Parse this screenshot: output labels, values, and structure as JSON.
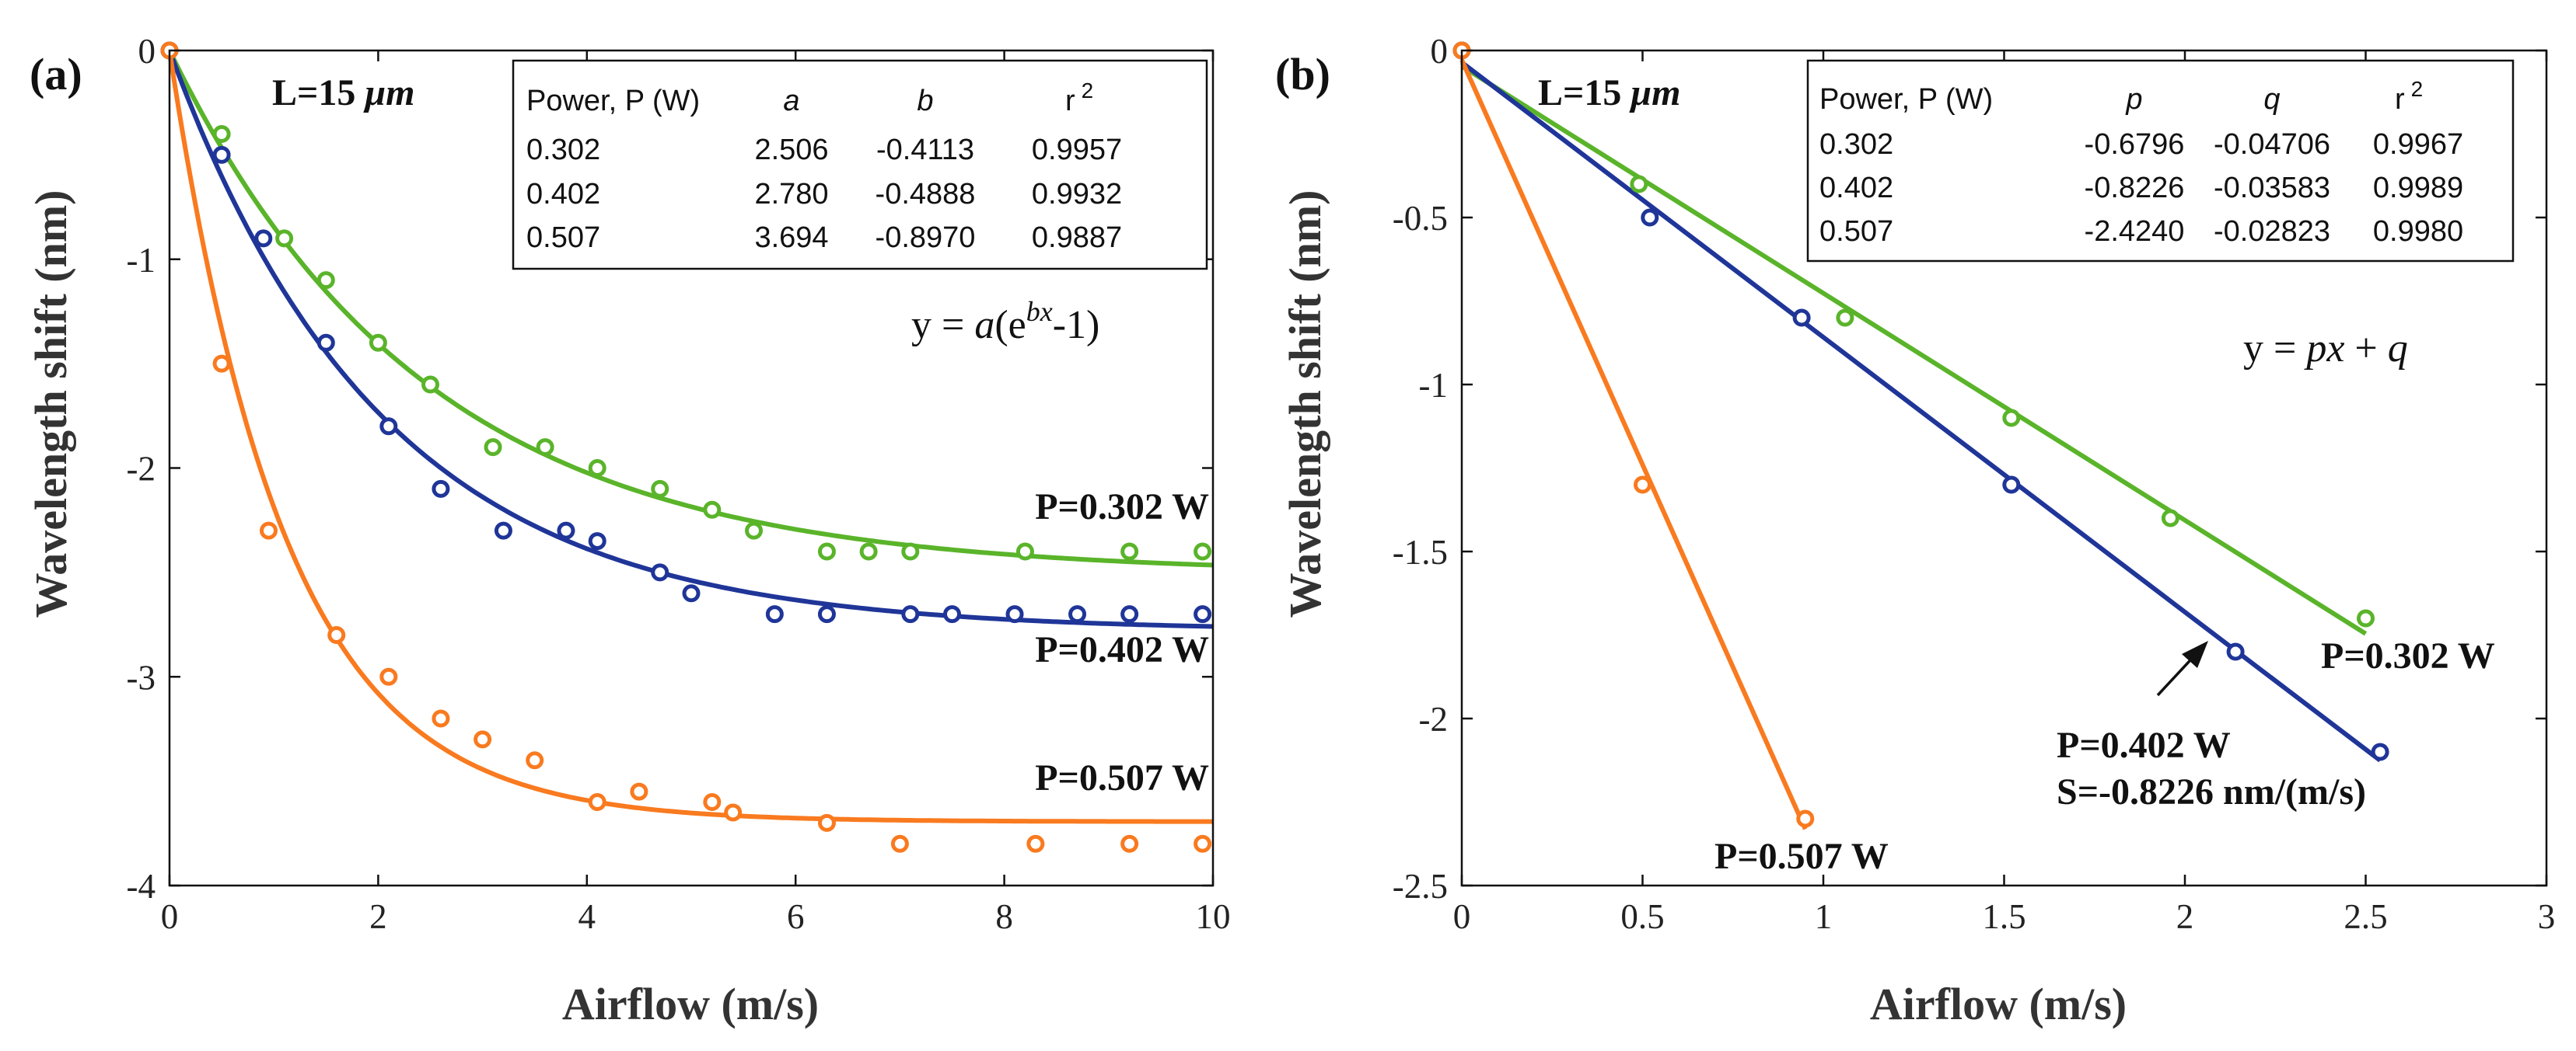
{
  "colors": {
    "p302": "#5ab42a",
    "p402": "#1f3598",
    "p507": "#f97a1f",
    "axis": "#111111"
  },
  "chart_data": [
    {
      "panel": "(a)",
      "type": "scatter",
      "xlabel": "Airflow (m/s)",
      "ylabel": "Wavelength shift (nm)",
      "xlim": [
        0,
        10
      ],
      "ylim": [
        -4,
        0
      ],
      "xticks": [
        "0",
        "2",
        "4",
        "6",
        "8",
        "10"
      ],
      "yticks": [
        "0",
        "-1",
        "-2",
        "-3",
        "-4"
      ],
      "length_label_text": "L=15 ",
      "length_label_unit": "μm",
      "fit_model": "exponential",
      "equation": {
        "prefix": "y = ",
        "a": "a",
        "open": "(e",
        "exp": "bx",
        "close": "-1)"
      },
      "table": {
        "headers": [
          "Power, P (W)",
          "a",
          "b",
          "r",
          "2"
        ],
        "rows": [
          [
            "0.302",
            "2.506",
            "-0.4113",
            "0.9957"
          ],
          [
            "0.402",
            "2.780",
            "-0.4888",
            "0.9932"
          ],
          [
            "0.507",
            "3.694",
            "-0.8970",
            "0.9887"
          ]
        ]
      },
      "series": [
        {
          "name": "P=0.302 W",
          "color_key": "p302",
          "fit": [
            2.506,
            -0.4113
          ],
          "x": [
            0,
            0.5,
            1.1,
            1.5,
            2.0,
            2.5,
            3.1,
            3.6,
            4.1,
            4.7,
            5.2,
            5.6,
            6.3,
            6.7,
            7.1,
            8.2,
            9.2,
            9.9
          ],
          "y": [
            0,
            -0.4,
            -0.9,
            -1.1,
            -1.4,
            -1.6,
            -1.9,
            -1.9,
            -2.0,
            -2.1,
            -2.2,
            -2.3,
            -2.4,
            -2.4,
            -2.4,
            -2.4,
            -2.4,
            -2.4
          ]
        },
        {
          "name": "P=0.402 W",
          "color_key": "p402",
          "fit": [
            2.78,
            -0.4888
          ],
          "x": [
            0,
            0.5,
            0.9,
            1.5,
            2.1,
            2.6,
            3.2,
            3.8,
            4.1,
            4.7,
            5.0,
            5.8,
            6.3,
            7.1,
            7.5,
            8.1,
            8.7,
            9.2,
            9.9
          ],
          "y": [
            0,
            -0.5,
            -0.9,
            -1.4,
            -1.8,
            -2.1,
            -2.3,
            -2.3,
            -2.35,
            -2.5,
            -2.6,
            -2.7,
            -2.7,
            -2.7,
            -2.7,
            -2.7,
            -2.7,
            -2.7,
            -2.7
          ]
        },
        {
          "name": "P=0.507 W",
          "color_key": "p507",
          "fit": [
            3.694,
            -0.897
          ],
          "x": [
            0,
            0.5,
            0.95,
            1.6,
            2.1,
            2.6,
            3.0,
            3.5,
            4.1,
            4.5,
            5.2,
            5.4,
            6.3,
            7.0,
            8.3,
            9.2,
            9.9
          ],
          "y": [
            0,
            -1.5,
            -2.3,
            -2.8,
            -3.0,
            -3.2,
            -3.3,
            -3.4,
            -3.6,
            -3.55,
            -3.6,
            -3.65,
            -3.7,
            -3.8,
            -3.8,
            -3.8,
            -3.8
          ]
        }
      ]
    },
    {
      "panel": "(b)",
      "type": "scatter",
      "xlabel": "Airflow (m/s)",
      "ylabel": "Wavelength shift (nm)",
      "xlim": [
        0,
        3
      ],
      "ylim": [
        -2.5,
        0
      ],
      "xticks": [
        "0",
        "0.5",
        "1",
        "1.5",
        "2",
        "2.5",
        "3"
      ],
      "yticks": [
        "0",
        "-0.5",
        "-1",
        "-1.5",
        "-2",
        "-2.5"
      ],
      "length_label_text": "L=15 ",
      "length_label_unit": "μm",
      "fit_model": "linear",
      "equation": {
        "prefix": "y = ",
        "p": "px",
        "mid": " + ",
        "q": "q"
      },
      "sensitivity_label": "S=-0.8226 nm/(m/s)",
      "table": {
        "headers": [
          "Power, P (W)",
          "p",
          "q",
          "r",
          "2"
        ],
        "rows": [
          [
            "0.302",
            "-0.6796",
            "-0.04706",
            "0.9967"
          ],
          [
            "0.402",
            "-0.8226",
            "-0.03583",
            "0.9989"
          ],
          [
            "0.507",
            "-2.4240",
            "-0.02823",
            "0.9980"
          ]
        ]
      },
      "series": [
        {
          "name": "P=0.302 W",
          "color_key": "p302",
          "fit": [
            -0.6796,
            -0.04706
          ],
          "x": [
            0,
            0.49,
            1.06,
            1.52,
            1.96,
            2.5
          ],
          "y": [
            0,
            -0.4,
            -0.8,
            -1.1,
            -1.4,
            -1.7
          ]
        },
        {
          "name": "P=0.402 W",
          "color_key": "p402",
          "fit": [
            -0.8226,
            -0.03583
          ],
          "x": [
            0,
            0.52,
            0.94,
            1.52,
            2.14,
            2.54
          ],
          "y": [
            0,
            -0.5,
            -0.8,
            -1.3,
            -1.8,
            -2.1
          ]
        },
        {
          "name": "P=0.507 W",
          "color_key": "p507",
          "fit": [
            -2.424,
            -0.02823
          ],
          "x": [
            0,
            0.5,
            0.95
          ],
          "y": [
            0,
            -1.3,
            -2.3
          ]
        }
      ]
    }
  ]
}
